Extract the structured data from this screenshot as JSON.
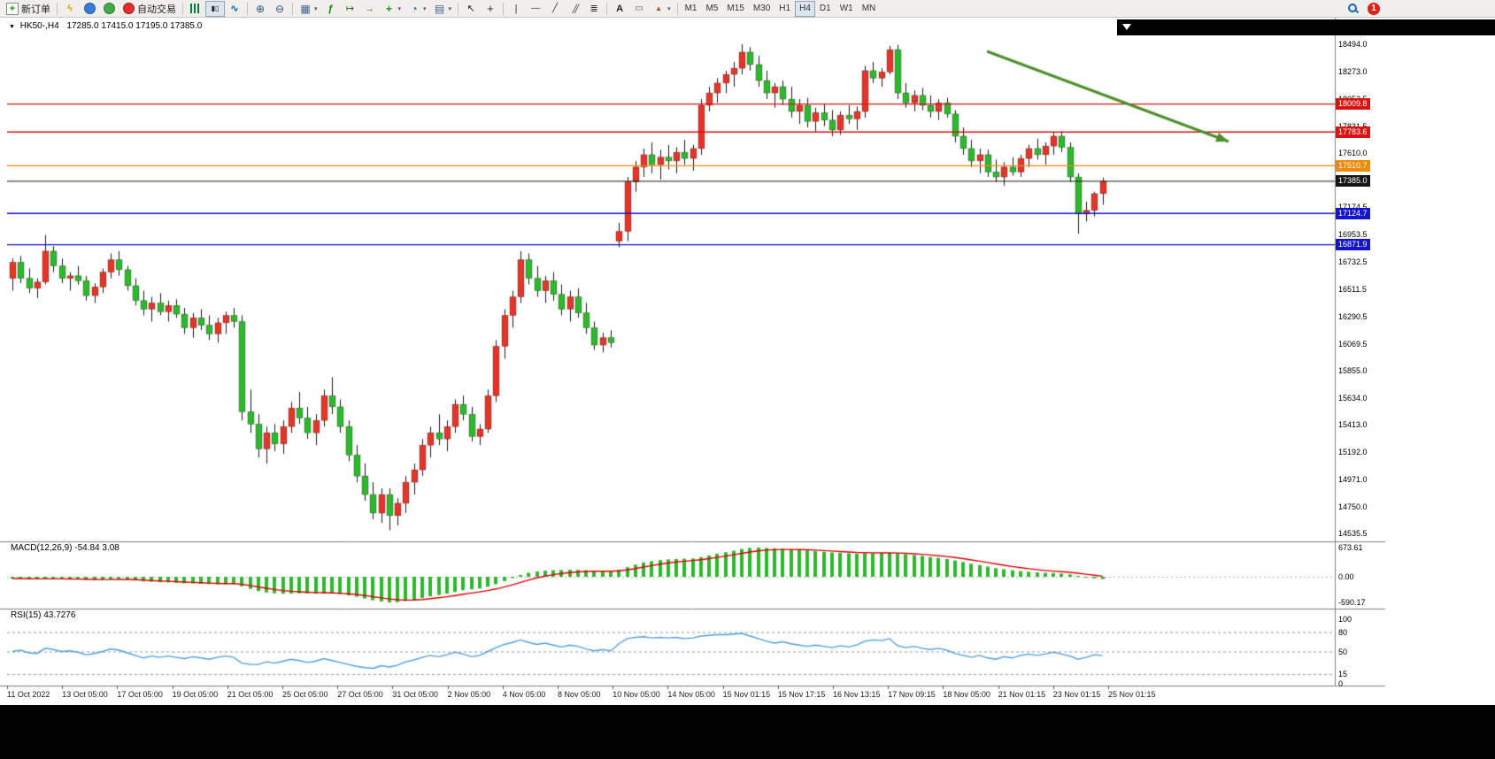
{
  "toolbar": {
    "new_order_label": "新订单",
    "auto_trading_label": "自动交易",
    "timeframes": [
      "M1",
      "M5",
      "M15",
      "M30",
      "H1",
      "H4",
      "D1",
      "W1",
      "MN"
    ],
    "active_timeframe": "H4",
    "active_chart_type": "candlestick",
    "notification_count": "1",
    "icon_names": [
      "new-order-icon",
      "lightning-icon",
      "headset-icon",
      "speaker-icon",
      "auto-trading-icon",
      "bar-chart-icon",
      "candlestick-icon",
      "line-chart-icon",
      "zoom-in-icon",
      "zoom-out-icon",
      "tile-windows-icon",
      "indicators-icon",
      "auto-scroll-icon",
      "chart-shift-icon",
      "add-indicator-icon",
      "period-clock-icon",
      "template-icon",
      "cursor-icon",
      "crosshair-icon",
      "vertical-line-icon",
      "horizontal-line-icon",
      "trendline-icon",
      "channel-icon",
      "fibonacci-icon",
      "text-icon",
      "label-icon",
      "shapes-icon",
      "search-icon",
      "notification-badge"
    ]
  },
  "chart_data": {
    "type": "candlestick",
    "symbol": "HK50-,H4",
    "title_ohlc": "17285.0 17415.0 17195.0 17385.0",
    "price_axis": [
      "18494.0",
      "18273.0",
      "18052.5",
      "17831.5",
      "17610.0",
      "17389.5",
      "17174.5",
      "16953.5",
      "16732.5",
      "16511.5",
      "16290.5",
      "16069.5",
      "15855.0",
      "15634.0",
      "15413.0",
      "15192.0",
      "14971.0",
      "14750.0",
      "14535.5"
    ],
    "ylim": [
      14472,
      18617
    ],
    "x_labels": [
      "11 Oct 2022",
      "13 Oct 05:00",
      "17 Oct 05:00",
      "19 Oct 05:00",
      "21 Oct 05:00",
      "25 Oct 05:00",
      "27 Oct 05:00",
      "31 Oct 05:00",
      "2 Nov 05:00",
      "4 Nov 05:00",
      "8 Nov 05:00",
      "10 Nov 05:00",
      "14 Nov 05:00",
      "15 Nov 01:15",
      "15 Nov 17:15",
      "16 Nov 13:15",
      "17 Nov 09:15",
      "18 Nov 05:00",
      "21 Nov 01:15",
      "23 Nov 01:15",
      "25 Nov 01:15"
    ],
    "levels": [
      {
        "label": "18009.8",
        "price": 18009.8,
        "color": "#dd1111"
      },
      {
        "label": "17783.6",
        "price": 17783.6,
        "color": "#dd1111"
      },
      {
        "label": "17510.7",
        "price": 17510.7,
        "color": "#f08a00"
      },
      {
        "label": "17385.0",
        "price": 17385.0,
        "color": "#161616"
      },
      {
        "label": "17124.7",
        "price": 17124.7,
        "color": "#1414cc"
      },
      {
        "label": "16871.9",
        "price": 16871.9,
        "color": "#1414cc"
      }
    ],
    "annotation_arrow": {
      "from": [
        1115,
        58
      ],
      "to": [
        1388,
        160
      ],
      "color": "#4e8f2c"
    },
    "colors": {
      "up": "#e53529",
      "down": "#2eb82e",
      "wick": "#1a1a1a",
      "macd_hist": "#2eb82e",
      "macd_signal": "#e00000",
      "rsi_line": "#4f9fe0"
    },
    "candles": [
      [
        16600,
        16760,
        16500,
        16730
      ],
      [
        16730,
        16780,
        16560,
        16600
      ],
      [
        16600,
        16680,
        16480,
        16520
      ],
      [
        16520,
        16600,
        16440,
        16570
      ],
      [
        16570,
        16950,
        16550,
        16820
      ],
      [
        16820,
        16860,
        16650,
        16700
      ],
      [
        16700,
        16760,
        16560,
        16600
      ],
      [
        16600,
        16650,
        16500,
        16620
      ],
      [
        16620,
        16700,
        16550,
        16580
      ],
      [
        16580,
        16620,
        16420,
        16460
      ],
      [
        16460,
        16560,
        16400,
        16530
      ],
      [
        16530,
        16680,
        16480,
        16650
      ],
      [
        16650,
        16800,
        16600,
        16750
      ],
      [
        16750,
        16820,
        16620,
        16670
      ],
      [
        16670,
        16700,
        16500,
        16540
      ],
      [
        16540,
        16600,
        16380,
        16420
      ],
      [
        16420,
        16500,
        16300,
        16350
      ],
      [
        16350,
        16450,
        16250,
        16400
      ],
      [
        16400,
        16480,
        16300,
        16330
      ],
      [
        16330,
        16420,
        16250,
        16380
      ],
      [
        16380,
        16430,
        16280,
        16310
      ],
      [
        16310,
        16360,
        16150,
        16200
      ],
      [
        16200,
        16320,
        16120,
        16280
      ],
      [
        16280,
        16350,
        16180,
        16220
      ],
      [
        16220,
        16300,
        16100,
        16150
      ],
      [
        16150,
        16280,
        16080,
        16240
      ],
      [
        16240,
        16330,
        16150,
        16300
      ],
      [
        16300,
        16360,
        16200,
        16250
      ],
      [
        16250,
        16300,
        15450,
        15520
      ],
      [
        15520,
        15700,
        15350,
        15420
      ],
      [
        15420,
        15500,
        15150,
        15220
      ],
      [
        15220,
        15400,
        15100,
        15350
      ],
      [
        15350,
        15420,
        15200,
        15260
      ],
      [
        15260,
        15450,
        15180,
        15400
      ],
      [
        15400,
        15600,
        15350,
        15550
      ],
      [
        15550,
        15680,
        15420,
        15470
      ],
      [
        15470,
        15560,
        15300,
        15350
      ],
      [
        15350,
        15500,
        15250,
        15450
      ],
      [
        15450,
        15700,
        15400,
        15650
      ],
      [
        15650,
        15800,
        15500,
        15560
      ],
      [
        15560,
        15620,
        15350,
        15400
      ],
      [
        15400,
        15450,
        15120,
        15170
      ],
      [
        15170,
        15250,
        14950,
        15000
      ],
      [
        15000,
        15100,
        14800,
        14850
      ],
      [
        14850,
        14950,
        14650,
        14700
      ],
      [
        14700,
        14900,
        14620,
        14850
      ],
      [
        14850,
        14900,
        14560,
        14680
      ],
      [
        14680,
        14820,
        14600,
        14780
      ],
      [
        14780,
        15000,
        14700,
        14950
      ],
      [
        14950,
        15100,
        14850,
        15050
      ],
      [
        15050,
        15300,
        15000,
        15250
      ],
      [
        15250,
        15400,
        15150,
        15350
      ],
      [
        15350,
        15500,
        15250,
        15300
      ],
      [
        15300,
        15450,
        15200,
        15400
      ],
      [
        15400,
        15620,
        15350,
        15580
      ],
      [
        15580,
        15650,
        15450,
        15500
      ],
      [
        15500,
        15560,
        15280,
        15320
      ],
      [
        15320,
        15420,
        15250,
        15380
      ],
      [
        15380,
        15700,
        15350,
        15650
      ],
      [
        15650,
        16100,
        15600,
        16050
      ],
      [
        16050,
        16350,
        15950,
        16300
      ],
      [
        16300,
        16500,
        16200,
        16450
      ],
      [
        16450,
        16820,
        16400,
        16750
      ],
      [
        16750,
        16800,
        16550,
        16600
      ],
      [
        16600,
        16700,
        16450,
        16500
      ],
      [
        16500,
        16620,
        16400,
        16580
      ],
      [
        16580,
        16650,
        16420,
        16470
      ],
      [
        16470,
        16550,
        16300,
        16350
      ],
      [
        16350,
        16500,
        16250,
        16450
      ],
      [
        16450,
        16520,
        16280,
        16320
      ],
      [
        16320,
        16400,
        16150,
        16200
      ],
      [
        16200,
        16250,
        16020,
        16060
      ],
      [
        16060,
        16160,
        16000,
        16120
      ],
      [
        16120,
        16180,
        16040,
        16080
      ],
      [
        16900,
        17050,
        16850,
        16980
      ],
      [
        16980,
        17420,
        16900,
        17380
      ],
      [
        17380,
        17550,
        17300,
        17500
      ],
      [
        17500,
        17650,
        17420,
        17600
      ],
      [
        17600,
        17700,
        17450,
        17520
      ],
      [
        17520,
        17640,
        17400,
        17580
      ],
      [
        17580,
        17680,
        17480,
        17550
      ],
      [
        17550,
        17660,
        17450,
        17620
      ],
      [
        17620,
        17720,
        17520,
        17570
      ],
      [
        17570,
        17680,
        17470,
        17650
      ],
      [
        17650,
        18050,
        17600,
        18000
      ],
      [
        18000,
        18150,
        17950,
        18100
      ],
      [
        18100,
        18220,
        18020,
        18180
      ],
      [
        18180,
        18280,
        18100,
        18250
      ],
      [
        18250,
        18350,
        18150,
        18300
      ],
      [
        18300,
        18494,
        18250,
        18430
      ],
      [
        18430,
        18470,
        18280,
        18330
      ],
      [
        18330,
        18400,
        18150,
        18200
      ],
      [
        18200,
        18280,
        18050,
        18100
      ],
      [
        18100,
        18180,
        17980,
        18150
      ],
      [
        18150,
        18200,
        18000,
        18050
      ],
      [
        18050,
        18150,
        17900,
        17950
      ],
      [
        17950,
        18050,
        17850,
        18000
      ],
      [
        18000,
        18060,
        17820,
        17870
      ],
      [
        17870,
        17980,
        17780,
        17940
      ],
      [
        17940,
        18010,
        17830,
        17880
      ],
      [
        17880,
        17960,
        17750,
        17800
      ],
      [
        17800,
        17950,
        17760,
        17920
      ],
      [
        17920,
        18000,
        17850,
        17890
      ],
      [
        17890,
        17990,
        17800,
        17950
      ],
      [
        17950,
        18320,
        17900,
        18280
      ],
      [
        18280,
        18350,
        18180,
        18220
      ],
      [
        18220,
        18300,
        18150,
        18270
      ],
      [
        18270,
        18480,
        18250,
        18450
      ],
      [
        18450,
        18490,
        18050,
        18100
      ],
      [
        18100,
        18180,
        17980,
        18020
      ],
      [
        18020,
        18120,
        17950,
        18080
      ],
      [
        18080,
        18140,
        17960,
        18000
      ],
      [
        18000,
        18080,
        17900,
        17950
      ],
      [
        17950,
        18050,
        17880,
        18020
      ],
      [
        18020,
        18060,
        17900,
        17930
      ],
      [
        17930,
        17960,
        17700,
        17750
      ],
      [
        17750,
        17820,
        17600,
        17650
      ],
      [
        17650,
        17720,
        17500,
        17550
      ],
      [
        17550,
        17650,
        17450,
        17600
      ],
      [
        17600,
        17640,
        17420,
        17460
      ],
      [
        17460,
        17560,
        17380,
        17420
      ],
      [
        17420,
        17540,
        17350,
        17500
      ],
      [
        17500,
        17580,
        17430,
        17460
      ],
      [
        17460,
        17600,
        17420,
        17570
      ],
      [
        17570,
        17680,
        17500,
        17650
      ],
      [
        17650,
        17730,
        17560,
        17600
      ],
      [
        17600,
        17700,
        17520,
        17670
      ],
      [
        17670,
        17780,
        17600,
        17750
      ],
      [
        17750,
        17790,
        17620,
        17660
      ],
      [
        17660,
        17700,
        17380,
        17420
      ],
      [
        17420,
        17450,
        16960,
        17120
      ],
      [
        17120,
        17220,
        17060,
        17150
      ],
      [
        17150,
        17300,
        17100,
        17285
      ],
      [
        17285,
        17415,
        17195,
        17385
      ]
    ],
    "indicators": [
      {
        "name": "MACD",
        "label": "MACD(12,26,9) -54.84 3.08",
        "current_macd": -54.84,
        "current_signal": 3.08,
        "scale": [
          "673.61",
          "0.00",
          "-590.17"
        ],
        "values": [
          -40,
          -45,
          -55,
          -60,
          -50,
          -45,
          -50,
          -55,
          -60,
          -70,
          -75,
          -70,
          -60,
          -55,
          -65,
          -85,
          -105,
          -115,
          -125,
          -130,
          -140,
          -150,
          -155,
          -160,
          -170,
          -175,
          -170,
          -165,
          -220,
          -280,
          -330,
          -360,
          -380,
          -390,
          -385,
          -380,
          -385,
          -390,
          -380,
          -385,
          -400,
          -430,
          -460,
          -500,
          -540,
          -570,
          -590.17,
          -585,
          -560,
          -530,
          -490,
          -450,
          -420,
          -390,
          -350,
          -310,
          -290,
          -270,
          -230,
          -170,
          -100,
          -30,
          40,
          90,
          120,
          140,
          150,
          155,
          160,
          158,
          150,
          140,
          135,
          130,
          160,
          220,
          280,
          330,
          360,
          385,
          400,
          410,
          415,
          420,
          450,
          490,
          530,
          565,
          600,
          640,
          665,
          673.61,
          665,
          655,
          645,
          630,
          620,
          605,
          590,
          575,
          560,
          550,
          540,
          530,
          540,
          545,
          545,
          550,
          540,
          520,
          500,
          480,
          455,
          435,
          410,
          375,
          340,
          300,
          270,
          235,
          200,
          175,
          150,
          130,
          115,
          100,
          90,
          85,
          75,
          55,
          20,
          -10,
          -35,
          -54.84
        ]
      },
      {
        "name": "RSI",
        "label": "RSI(15) 43.7276",
        "current": 43.7276,
        "scale": [
          "100",
          "80",
          "50",
          "15",
          "0"
        ],
        "level_lines": [
          80,
          50,
          15
        ],
        "values": [
          50,
          52,
          48,
          47,
          55,
          53,
          50,
          51,
          49,
          45,
          47,
          50,
          54,
          52,
          48,
          44,
          40,
          43,
          41,
          43,
          41,
          39,
          42,
          40,
          38,
          41,
          43,
          41,
          32,
          30,
          30,
          34,
          32,
          35,
          38,
          36,
          33,
          35,
          39,
          36,
          33,
          30,
          27,
          25,
          24,
          28,
          26,
          29,
          34,
          37,
          41,
          44,
          42,
          45,
          49,
          46,
          42,
          44,
          50,
          56,
          61,
          64,
          68,
          64,
          61,
          63,
          60,
          57,
          60,
          58,
          54,
          51,
          53,
          51,
          62,
          70,
          72,
          73,
          71,
          72,
          71,
          72,
          70,
          71,
          74,
          75,
          76,
          76,
          77,
          78,
          74,
          70,
          66,
          63,
          65,
          62,
          60,
          58,
          60,
          58,
          56,
          59,
          57,
          60,
          66,
          68,
          67,
          70,
          59,
          56,
          58,
          55,
          53,
          55,
          52,
          47,
          44,
          41,
          44,
          40,
          38,
          42,
          40,
          44,
          46,
          44,
          46,
          49,
          46,
          43,
          38,
          41,
          45,
          43.73
        ]
      }
    ]
  }
}
